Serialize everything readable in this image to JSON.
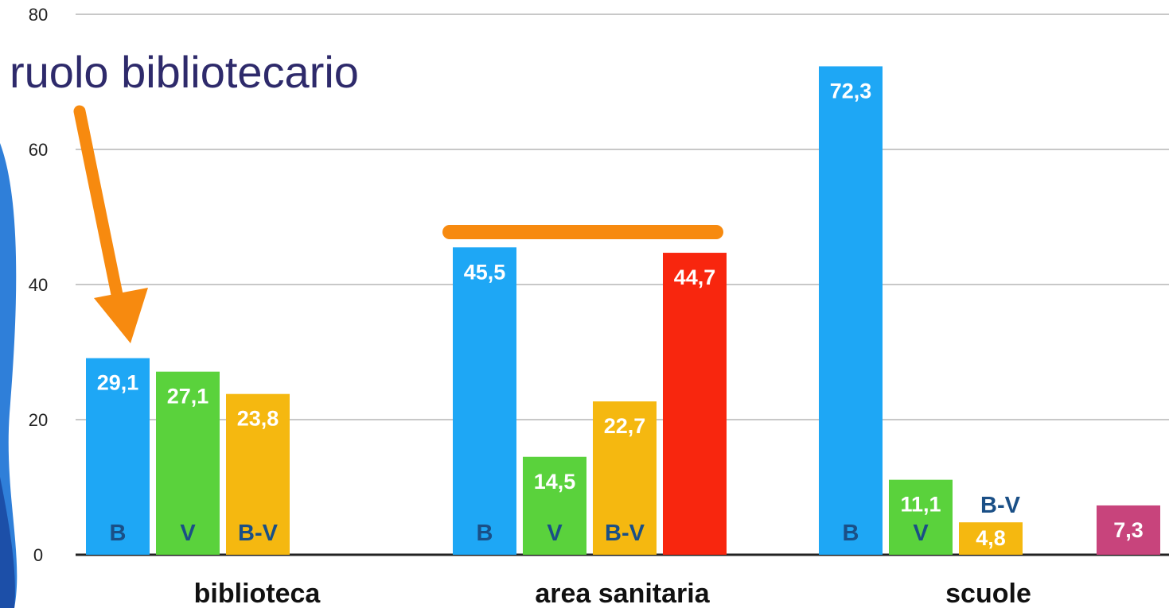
{
  "colors": {
    "B": "#1ea7f5",
    "V": "#5ad23c",
    "B-V": "#f5b810",
    "red": "#f8260e",
    "magenta": "#c8447c",
    "series_label": "#1a4f86",
    "arrow": "#f78a0f",
    "annotation": "#2e2a6b",
    "grid": "#c8c8c8"
  },
  "annotation": {
    "text": "ruolo bibliotecario"
  },
  "chart_data": {
    "type": "bar",
    "ylim": [
      0,
      80
    ],
    "yticks": [
      "0",
      "20",
      "40",
      "60",
      "80"
    ],
    "grid": true,
    "categories": [
      "biblioteca",
      "area sanitaria",
      "scuole"
    ],
    "groups": [
      {
        "category": "biblioteca",
        "bars": [
          {
            "series": "B",
            "value": 29.1,
            "label": "29,1",
            "color": "#1ea7f5"
          },
          {
            "series": "V",
            "value": 27.1,
            "label": "27,1",
            "color": "#5ad23c"
          },
          {
            "series": "B-V",
            "value": 23.8,
            "label": "23,8",
            "color": "#f5b810"
          }
        ]
      },
      {
        "category": "area sanitaria",
        "bars": [
          {
            "series": "B",
            "value": 45.5,
            "label": "45,5",
            "color": "#1ea7f5"
          },
          {
            "series": "V",
            "value": 14.5,
            "label": "14,5",
            "color": "#5ad23c"
          },
          {
            "series": "B-V",
            "value": 22.7,
            "label": "22,7",
            "color": "#f5b810"
          },
          {
            "series": "",
            "value": 44.7,
            "label": "44,7",
            "color": "#f8260e"
          }
        ]
      },
      {
        "category": "scuole",
        "bars": [
          {
            "series": "B",
            "value": 72.3,
            "label": "72,3",
            "color": "#1ea7f5"
          },
          {
            "series": "V",
            "value": 11.1,
            "label": "11,1",
            "color": "#5ad23c"
          },
          {
            "series": "B-V",
            "value": 4.8,
            "label": "4,8",
            "color": "#f5b810"
          },
          {
            "series": "",
            "value": 7.3,
            "label": "7,3",
            "color": "#c8447c"
          }
        ]
      }
    ]
  }
}
